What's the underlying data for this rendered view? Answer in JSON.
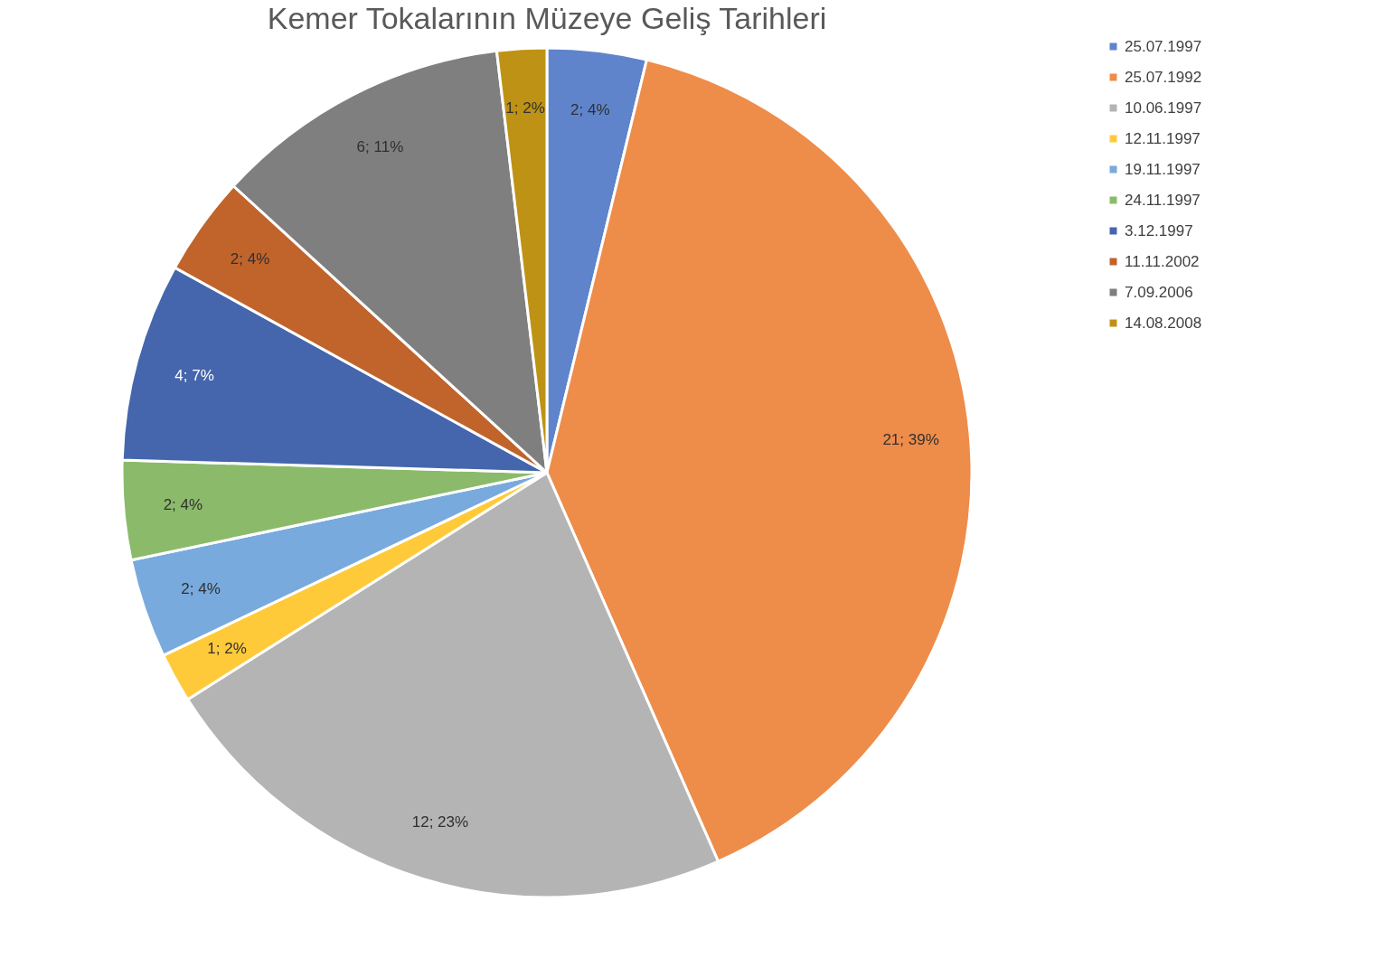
{
  "chart_data": {
    "type": "pie",
    "title": "Kemer Tokalarının Müzeye Geliş Tarihleri",
    "categories": [
      "25.07.1997",
      "25.07.1992",
      "10.06.1997",
      "12.11.1997",
      "19.11.1997",
      "24.11.1997",
      "3.12.1997",
      "11.11.2002",
      "7.09.2006",
      "14.08.2008"
    ],
    "values": [
      2,
      21,
      12,
      1,
      2,
      2,
      4,
      2,
      6,
      1
    ],
    "value_labels": [
      "2; 4%",
      "21; 39%",
      "12; 23%",
      "1; 2%",
      "2; 4%",
      "2; 4%",
      "4; 7%",
      "2; 4%",
      "6; 11%",
      "1; 2%"
    ],
    "colors": [
      "#5f84cc",
      "#ee8c4a",
      "#b4b4b4",
      "#ffca3a",
      "#78aadd",
      "#8bbb6a",
      "#4566ad",
      "#c0642c",
      "#7f7f7f",
      "#be9215"
    ],
    "legend": "right"
  }
}
